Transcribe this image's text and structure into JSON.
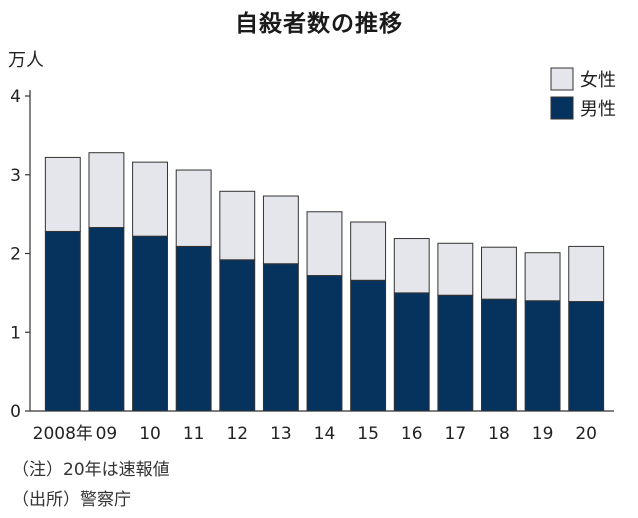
{
  "chart_data": {
    "type": "bar",
    "stacked": true,
    "title": "自殺者数の推移",
    "unit_label": "万人",
    "categories": [
      "2008年",
      "09",
      "10",
      "11",
      "12",
      "13",
      "14",
      "15",
      "16",
      "17",
      "18",
      "19",
      "20"
    ],
    "series": [
      {
        "name": "男性",
        "color": "#06325e",
        "values": [
          2.28,
          2.33,
          2.22,
          2.09,
          1.92,
          1.87,
          1.72,
          1.66,
          1.5,
          1.47,
          1.42,
          1.4,
          1.39
        ]
      },
      {
        "name": "女性",
        "color": "#e4e6ec",
        "values": [
          0.94,
          0.95,
          0.94,
          0.97,
          0.87,
          0.86,
          0.81,
          0.74,
          0.69,
          0.66,
          0.66,
          0.61,
          0.7
        ]
      }
    ],
    "ylim": [
      0,
      4
    ],
    "yticks": [
      0,
      1,
      2,
      3,
      4
    ],
    "legend": "top-right",
    "grid": false
  },
  "notes": [
    "（注）20年は速報値",
    "（出所）警察庁"
  ]
}
